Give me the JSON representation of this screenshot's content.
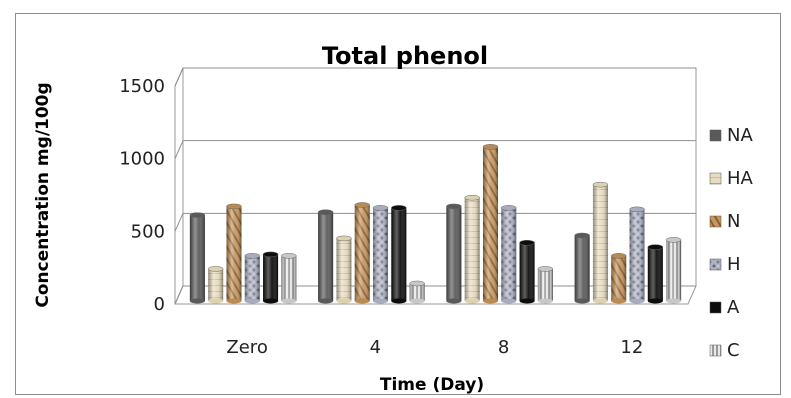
{
  "chart_data": {
    "type": "bar",
    "title": "Total phenol",
    "xlabel": "Time (Day)",
    "ylabel": "Concentration mg/100g",
    "categories": [
      "Zero",
      "4",
      "8",
      "12"
    ],
    "ylim": [
      0,
      1500
    ],
    "yticks": [
      0,
      500,
      1000,
      1500
    ],
    "grid": true,
    "legend_position": "right",
    "style": "3d-cylinder",
    "series": [
      {
        "name": "NA",
        "values": [
          570,
          590,
          630,
          430
        ],
        "color": "#5a5a5a"
      },
      {
        "name": "HA",
        "values": [
          200,
          410,
          690,
          780
        ],
        "color": "#ddd2b0"
      },
      {
        "name": "N",
        "values": [
          630,
          640,
          1040,
          290
        ],
        "color": "#b98a52"
      },
      {
        "name": "H",
        "values": [
          290,
          620,
          620,
          610
        ],
        "color": "#a7acbe"
      },
      {
        "name": "A",
        "values": [
          300,
          620,
          380,
          350
        ],
        "color": "#0d0d0d"
      },
      {
        "name": "C",
        "values": [
          290,
          100,
          200,
          400
        ],
        "color": "#c8c8c8"
      }
    ]
  }
}
